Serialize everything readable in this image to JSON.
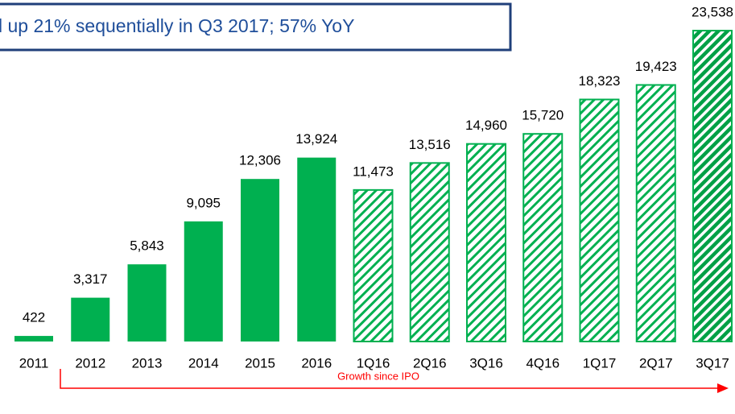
{
  "chart_data": {
    "type": "bar",
    "title": "l up 21% sequentially in Q3 2017; 57% YoY",
    "categories": [
      "2011",
      "2012",
      "2013",
      "2014",
      "2015",
      "2016",
      "1Q16",
      "2Q16",
      "3Q16",
      "4Q16",
      "1Q17",
      "2Q17",
      "3Q17"
    ],
    "values": [
      422,
      3317,
      5843,
      9095,
      12306,
      13924,
      11473,
      13516,
      14960,
      15720,
      18323,
      19423,
      23538
    ],
    "value_labels": [
      "422",
      "3,317",
      "5,843",
      "9,095",
      "12,306",
      "13,924",
      "11,473",
      "13,516",
      "14,960",
      "15,720",
      "18,323",
      "19,423",
      "23,538"
    ],
    "bar_styles": [
      "solid",
      "solid",
      "solid",
      "solid",
      "solid",
      "solid",
      "hatched",
      "hatched",
      "hatched",
      "hatched",
      "hatched",
      "hatched",
      "dense-hatched"
    ],
    "color": "#00b050",
    "annotation": "Growth since IPO",
    "annotation_color": "#ff0000"
  }
}
